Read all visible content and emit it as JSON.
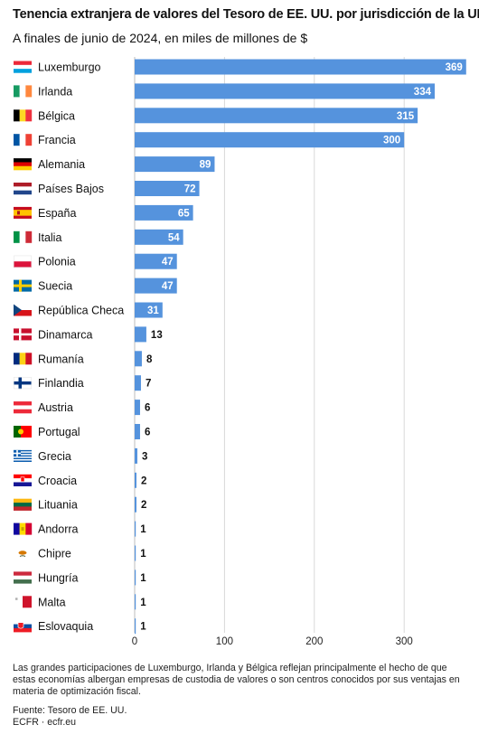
{
  "title": "Tenencia extranjera de valores del Tesoro de EE. UU. por jurisdicción de la UE.",
  "subtitle": "A finales de junio de 2024, en miles de millones de $",
  "note": "Las grandes participaciones de Luxemburgo, Irlanda y Bélgica reflejan principalmente el hecho de que estas economías albergan empresas de custodia de valores o son centros conocidos por sus ventajas en materia de optimización fiscal.",
  "source": "Fuente: Tesoro de EE. UU.",
  "publisher": "ECFR · ecfr.eu",
  "colors": {
    "bar": "#5593dd",
    "label_inside": "#ffffff",
    "label_outside": "#111111",
    "grid": "#d9d9d9"
  },
  "chart_data": {
    "type": "bar",
    "orientation": "horizontal",
    "title": "Tenencia extranjera de valores del Tesoro de EE. UU. por jurisdicción de la UE.",
    "subtitle": "A finales de junio de 2024, en miles de millones de $",
    "categories": [
      "Luxemburgo",
      "Irlanda",
      "Bélgica",
      "Francia",
      "Alemania",
      "Países Bajos",
      "España",
      "Italia",
      "Polonia",
      "Suecia",
      "República Checa",
      "Dinamarca",
      "Rumanía",
      "Finlandia",
      "Austria",
      "Portugal",
      "Grecia",
      "Croacia",
      "Lituania",
      "Andorra",
      "Chipre",
      "Hungría",
      "Malta",
      "Eslovaquia"
    ],
    "values": [
      369,
      334,
      315,
      300,
      89,
      72,
      65,
      54,
      47,
      47,
      31,
      13,
      8,
      7,
      6,
      6,
      3,
      2,
      2,
      1,
      1,
      1,
      1,
      1
    ],
    "flag_icons": [
      "luxembourg-flag",
      "ireland-flag",
      "belgium-flag",
      "france-flag",
      "germany-flag",
      "netherlands-flag",
      "spain-flag",
      "italy-flag",
      "poland-flag",
      "sweden-flag",
      "czechia-flag",
      "denmark-flag",
      "romania-flag",
      "finland-flag",
      "austria-flag",
      "portugal-flag",
      "greece-flag",
      "croatia-flag",
      "lithuania-flag",
      "andorra-flag",
      "cyprus-flag",
      "hungary-flag",
      "malta-flag",
      "slovakia-flag"
    ],
    "xlim": [
      0,
      370
    ],
    "xticks": [
      0,
      100,
      200,
      300
    ],
    "grid": true,
    "legend": "none",
    "value_labels": true
  }
}
